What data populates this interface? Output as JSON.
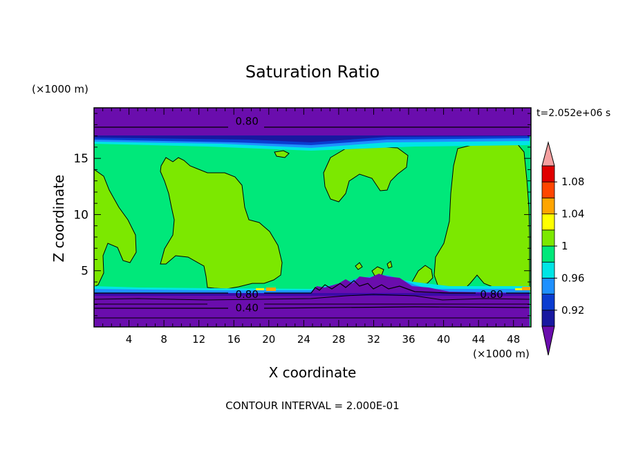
{
  "chart_data": {
    "type": "filled-contour",
    "title": "Saturation Ratio",
    "time_label": "t=2.052e+06 s",
    "xlabel": "X coordinate",
    "ylabel": "Z coordinate",
    "x_unit": "(×1000 m)",
    "y_unit": "(×1000 m)",
    "xlim": [
      0,
      50
    ],
    "ylim": [
      0,
      19.5
    ],
    "x_ticks": [
      4,
      8,
      12,
      16,
      20,
      24,
      28,
      32,
      36,
      40,
      44,
      48
    ],
    "y_ticks": [
      5,
      10,
      15
    ],
    "footer": "CONTOUR INTERVAL = 2.000E-01",
    "colorbar": {
      "labels": [
        "1.08",
        "1.04",
        "1",
        "0.96",
        "0.92"
      ],
      "label_values": [
        1.08,
        1.04,
        1.0,
        0.96,
        0.92
      ],
      "levels": [
        0.9,
        0.92,
        0.94,
        0.96,
        0.98,
        1.0,
        1.02,
        1.04,
        1.06,
        1.08,
        1.1
      ],
      "colors": [
        "#6a0dad",
        "#1818a0",
        "#0a3cd0",
        "#1e90ff",
        "#00e5e5",
        "#00e87a",
        "#7ce800",
        "#ffff00",
        "#ffa500",
        "#ff4500",
        "#e00000",
        "#f5a0a0"
      ]
    },
    "contour_labels": [
      {
        "text": "0.80",
        "x": 17.5,
        "z": 18.3
      },
      {
        "text": "0.80",
        "x": 17.5,
        "z": 2.9
      },
      {
        "text": "0.40",
        "x": 17.5,
        "z": 1.7
      },
      {
        "text": "0.80",
        "x": 45.5,
        "z": 2.9
      }
    ]
  }
}
